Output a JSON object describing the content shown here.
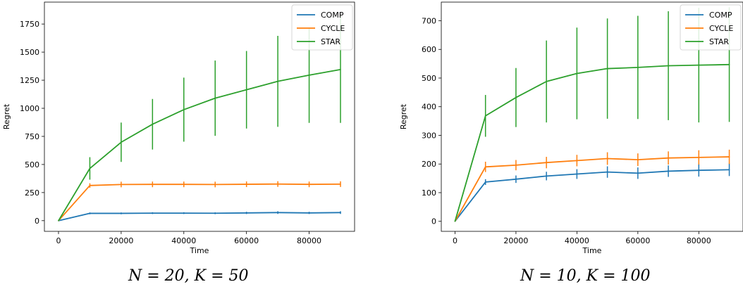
{
  "chart_data": [
    {
      "type": "line",
      "caption": "N = 20, K = 50",
      "xlabel": "Time",
      "ylabel": "Regret",
      "xlim": [
        -4500,
        94500
      ],
      "ylim": [
        -95,
        1945
      ],
      "xticks": [
        0,
        20000,
        40000,
        60000,
        80000
      ],
      "yticks": [
        0,
        250,
        500,
        750,
        1000,
        1250,
        1500,
        1750
      ],
      "legend": "top-right",
      "x": [
        0,
        10000,
        20000,
        30000,
        40000,
        50000,
        60000,
        70000,
        80000,
        90000
      ],
      "series": [
        {
          "name": "COMP",
          "color": "#1f77b4",
          "values": [
            0,
            65,
            65,
            67,
            67,
            66,
            69,
            72,
            69,
            72
          ],
          "err": [
            0,
            8,
            8,
            8,
            8,
            8,
            10,
            12,
            10,
            12
          ]
        },
        {
          "name": "CYCLE",
          "color": "#ff7f0e",
          "values": [
            0,
            313,
            322,
            323,
            323,
            322,
            324,
            326,
            323,
            325
          ],
          "err": [
            0,
            20,
            25,
            25,
            25,
            25,
            25,
            25,
            25,
            25
          ]
        },
        {
          "name": "STAR",
          "color": "#2ca02c",
          "values": [
            0,
            465,
            698,
            858,
            988,
            1090,
            1165,
            1240,
            1295,
            1345
          ],
          "err": [
            0,
            100,
            175,
            225,
            285,
            335,
            345,
            405,
            425,
            475
          ]
        }
      ]
    },
    {
      "type": "line",
      "caption": "N = 10, K = 100",
      "xlabel": "Time",
      "ylabel": "Regret",
      "xlim": [
        -4500,
        94500
      ],
      "ylim": [
        -35,
        765
      ],
      "xticks": [
        0,
        20000,
        40000,
        60000,
        80000
      ],
      "yticks": [
        0,
        100,
        200,
        300,
        400,
        500,
        600,
        700
      ],
      "legend": "top-right",
      "x": [
        0,
        10000,
        20000,
        30000,
        40000,
        50000,
        60000,
        70000,
        80000,
        90000
      ],
      "series": [
        {
          "name": "COMP",
          "color": "#1f77b4",
          "values": [
            0,
            137,
            147,
            158,
            165,
            172,
            168,
            175,
            178,
            180
          ],
          "err": [
            0,
            10,
            13,
            15,
            17,
            20,
            20,
            20,
            22,
            22
          ]
        },
        {
          "name": "CYCLE",
          "color": "#ff7f0e",
          "values": [
            0,
            190,
            196,
            205,
            212,
            219,
            215,
            221,
            223,
            225
          ],
          "err": [
            0,
            18,
            18,
            20,
            20,
            22,
            22,
            23,
            25,
            25
          ]
        },
        {
          "name": "STAR",
          "color": "#2ca02c",
          "values": [
            0,
            368,
            432,
            488,
            516,
            533,
            537,
            543,
            545,
            547
          ],
          "err": [
            0,
            73,
            103,
            143,
            160,
            175,
            180,
            190,
            200,
            200
          ]
        }
      ]
    }
  ]
}
